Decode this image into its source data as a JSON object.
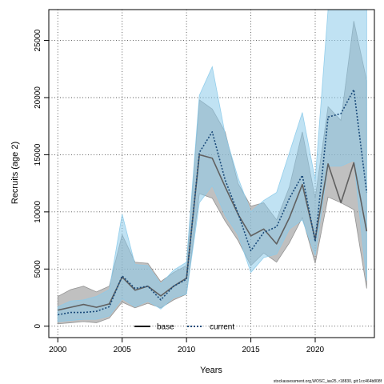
{
  "chart_data": {
    "type": "line",
    "xlabel": "Years",
    "ylabel": "Recruits (age 2)",
    "xlim": [
      1999.3,
      2024.6
    ],
    "ylim": [
      -1000,
      27700
    ],
    "grid": true,
    "legend_position": "bottom-center",
    "x_ticks": [
      2000,
      2005,
      2010,
      2015,
      2020
    ],
    "y_ticks": [
      0,
      5000,
      10000,
      15000,
      20000,
      25000
    ],
    "x_tick_labels": [
      "2000",
      "2005",
      "2010",
      "2015",
      "2020"
    ],
    "y_tick_labels": [
      "0",
      "5000",
      "10000",
      "15000",
      "20000",
      "25000"
    ],
    "x": [
      2000,
      2001,
      2002,
      2003,
      2004,
      2005,
      2006,
      2007,
      2008,
      2009,
      2010,
      2011,
      2012,
      2013,
      2014,
      2015,
      2016,
      2017,
      2018,
      2019,
      2020,
      2021,
      2022,
      2023,
      2024
    ],
    "series": [
      {
        "name": "base",
        "color": "#606060",
        "fill_color": "#8c8c8c",
        "line_style": "solid",
        "values": [
          1400,
          1650,
          1900,
          1650,
          1950,
          4300,
          3150,
          3500,
          2650,
          3500,
          4200,
          15000,
          14700,
          12200,
          9800,
          7900,
          8500,
          7200,
          9500,
          12400,
          7600,
          14200,
          10800,
          14300,
          8300
        ],
        "lower": [
          200,
          300,
          400,
          300,
          700,
          2100,
          1600,
          2000,
          1600,
          2300,
          2800,
          11600,
          11200,
          9200,
          7500,
          5300,
          6400,
          5600,
          7300,
          9500,
          5500,
          11300,
          10800,
          10200,
          3300
        ],
        "upper": [
          2600,
          3200,
          3500,
          3000,
          3500,
          8000,
          5600,
          5500,
          3900,
          4700,
          5300,
          19800,
          19000,
          17000,
          12500,
          10500,
          10800,
          9300,
          12200,
          17000,
          11200,
          19200,
          18000,
          26700,
          21500
        ]
      },
      {
        "name": "current",
        "color": "#1a4a7a",
        "fill_color": "#8ccbea",
        "line_style": "dotted",
        "values": [
          1000,
          1200,
          1200,
          1300,
          1700,
          4400,
          3300,
          3500,
          2300,
          3500,
          4100,
          15200,
          17000,
          12800,
          9900,
          6600,
          8200,
          8700,
          11200,
          13200,
          7400,
          18300,
          18600,
          20700,
          11700
        ],
        "lower": [
          400,
          500,
          600,
          600,
          900,
          2400,
          1700,
          2200,
          1500,
          2500,
          2800,
          10800,
          12300,
          9700,
          8000,
          4700,
          6000,
          6300,
          8500,
          9300,
          6200,
          14000,
          14000,
          14500,
          4000
        ],
        "upper": [
          1700,
          2200,
          2300,
          2600,
          3200,
          9800,
          5400,
          5300,
          3700,
          4900,
          5600,
          20200,
          22700,
          16800,
          13000,
          10000,
          11000,
          11700,
          15200,
          18700,
          12800,
          27700,
          27700,
          27700,
          27700
        ]
      }
    ]
  },
  "legend": {
    "items": [
      {
        "label": "base",
        "color": "#000000",
        "style": "solid"
      },
      {
        "label": "current",
        "color": "#1a4a7a",
        "style": "dotted"
      }
    ]
  },
  "footer": {
    "text": "stockassessment.org,WOSC_ias25, r18830, git:1cc464b808f"
  }
}
